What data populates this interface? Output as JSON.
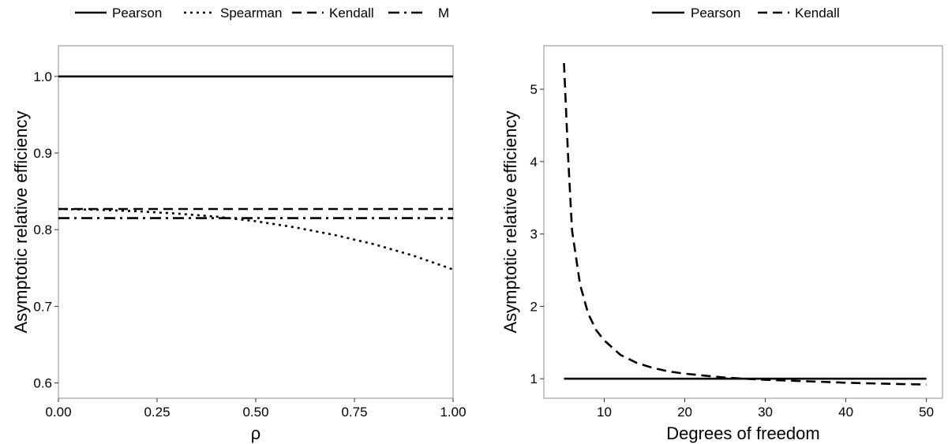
{
  "chart_data": [
    {
      "type": "line",
      "title": "",
      "xlabel": "ρ",
      "ylabel": "Asymptotic relative efficiency",
      "xlim": [
        0,
        1
      ],
      "ylim": [
        0.58,
        1.04
      ],
      "x_ticks": [
        "0.00",
        "0.25",
        "0.50",
        "0.75",
        "1.00"
      ],
      "y_ticks": [
        "0.6",
        "0.7",
        "0.8",
        "0.9",
        "1.0"
      ],
      "grid": false,
      "legend_position": "top",
      "series": [
        {
          "name": "Pearson",
          "style": "solid",
          "x": [
            0,
            1
          ],
          "y": [
            1.0,
            1.0
          ]
        },
        {
          "name": "Spearman",
          "style": "dotted",
          "x": [
            0,
            0.1,
            0.2,
            0.3,
            0.4,
            0.5,
            0.6,
            0.7,
            0.8,
            0.9,
            1.0
          ],
          "y": [
            0.827,
            0.826,
            0.824,
            0.821,
            0.817,
            0.811,
            0.803,
            0.793,
            0.781,
            0.766,
            0.748
          ]
        },
        {
          "name": "Kendall",
          "style": "dashed",
          "x": [
            0,
            1
          ],
          "y": [
            0.827,
            0.827
          ]
        },
        {
          "name": "M",
          "style": "dotdash",
          "x": [
            0,
            1
          ],
          "y": [
            0.815,
            0.815
          ]
        }
      ]
    },
    {
      "type": "line",
      "title": "",
      "xlabel": "Degrees of freedom",
      "ylabel": "Asymptotic relative efficiency",
      "xlim": [
        2.5,
        52
      ],
      "ylim": [
        0.73,
        5.6
      ],
      "x_ticks": [
        "10",
        "20",
        "30",
        "40",
        "50"
      ],
      "y_ticks": [
        "1",
        "2",
        "3",
        "4",
        "5"
      ],
      "grid": false,
      "legend_position": "top",
      "series": [
        {
          "name": "Pearson",
          "style": "solid",
          "x": [
            5,
            50
          ],
          "y": [
            1.0,
            1.0
          ]
        },
        {
          "name": "Kendall",
          "style": "dashed",
          "x": [
            5,
            5.5,
            6,
            7,
            8,
            9,
            10,
            12,
            14,
            16,
            18,
            20,
            25,
            30,
            35,
            40,
            45,
            50
          ],
          "y": [
            5.36,
            4.1,
            3.05,
            2.3,
            1.9,
            1.67,
            1.53,
            1.33,
            1.22,
            1.15,
            1.1,
            1.07,
            1.015,
            0.985,
            0.965,
            0.945,
            0.93,
            0.92
          ]
        }
      ]
    }
  ]
}
